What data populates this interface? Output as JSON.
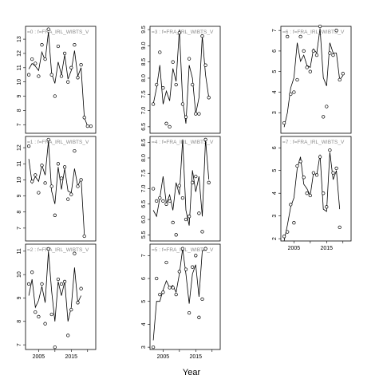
{
  "chart_data": {
    "type": "line",
    "xlabel": "Year",
    "x_ticks": [
      "2005",
      "2015"
    ],
    "panels": [
      {
        "strip": "=0 : f=FRA_IRL_WIBTS_V",
        "ylim": [
          6.4,
          13.9
        ],
        "yticks": [
          "7",
          "8",
          "9",
          "10",
          "11",
          "12",
          "13"
        ],
        "x": [
          2002,
          2003,
          2004,
          2005,
          2006,
          2007,
          2008,
          2009,
          2010,
          2011,
          2012,
          2013,
          2014,
          2015,
          2016,
          2017,
          2018,
          2019,
          2020,
          2021
        ],
        "line": [
          10.9,
          11.3,
          11.1,
          10.8,
          12.1,
          11.5,
          13.5,
          10.6,
          9.9,
          11.4,
          10.5,
          11.9,
          10.2,
          10.8,
          12.2,
          10.4,
          11.0,
          7.5,
          6.9,
          null
        ],
        "points": [
          10.5,
          11.6,
          11.3,
          10.4,
          12.6,
          11.6,
          13.7,
          10.5,
          9.0,
          12.5,
          10.4,
          12.0,
          10.0,
          11.0,
          12.6,
          10.3,
          11.2,
          7.5,
          6.9,
          6.9
        ]
      },
      {
        "strip": "=3 : f=FRA_IRL_WIBTS_V",
        "ylim": [
          6.3,
          9.6
        ],
        "yticks": [
          "6.5",
          "7.0",
          "7.5",
          "8.0",
          "8.5",
          "9.0",
          "9.5"
        ],
        "x": [
          2002,
          2003,
          2004,
          2005,
          2006,
          2007,
          2008,
          2009,
          2010,
          2011,
          2012,
          2013,
          2014,
          2015,
          2016,
          2017,
          2018,
          2019,
          2020,
          2021
        ],
        "line": [
          7.2,
          7.7,
          8.4,
          7.2,
          7.6,
          7.3,
          8.3,
          7.9,
          9.5,
          7.3,
          6.6,
          8.4,
          8.0,
          6.9,
          7.4,
          9.3,
          8.1,
          7.4,
          null,
          null
        ],
        "points": [
          7.2,
          7.8,
          8.8,
          7.7,
          6.6,
          6.5,
          8.5,
          7.8,
          9.4,
          7.2,
          6.8,
          8.6,
          7.8,
          6.9,
          6.9,
          9.3,
          8.4,
          7.4,
          null,
          null
        ]
      },
      {
        "strip": "=6 : f=FRA_IRL_WIBTS_V",
        "ylim": [
          2.0,
          7.2
        ],
        "yticks": [
          "3",
          "4",
          "5",
          "6",
          "7"
        ],
        "x": [
          2002,
          2003,
          2004,
          2005,
          2006,
          2007,
          2008,
          2009,
          2010,
          2011,
          2012,
          2013,
          2014,
          2015,
          2016,
          2017,
          2018,
          2019,
          2020,
          2021
        ],
        "line": [
          2.3,
          3.0,
          4.2,
          4.7,
          6.4,
          5.5,
          5.8,
          5.3,
          5.2,
          6.1,
          5.9,
          7.1,
          4.7,
          4.3,
          6.4,
          5.9,
          5.9,
          4.6,
          4.8,
          null
        ],
        "points": [
          2.5,
          6.7,
          3.9,
          4.0,
          4.6,
          6.7,
          6.0,
          5.2,
          5.0,
          6.0,
          5.8,
          7.2,
          2.8,
          3.3,
          5.9,
          5.8,
          7.0,
          4.6,
          4.9,
          null
        ]
      },
      {
        "strip": "=1 : f=FRA_IRL_WIBTS_V",
        "ylim": [
          6.2,
          12.7
        ],
        "yticks": [
          "7",
          "8",
          "9",
          "10",
          "11",
          "12"
        ],
        "x": [
          2002,
          2003,
          2004,
          2005,
          2006,
          2007,
          2008,
          2009,
          2010,
          2011,
          2012,
          2013,
          2014,
          2015,
          2016,
          2017,
          2018,
          2019,
          2020,
          2021
        ],
        "line": [
          11.3,
          9.8,
          10.2,
          9.9,
          10.9,
          10.3,
          12.4,
          9.3,
          8.5,
          10.8,
          9.4,
          10.7,
          9.3,
          9.2,
          10.7,
          9.6,
          10.1,
          6.6,
          null,
          null
        ],
        "points": [
          12.1,
          9.9,
          10.3,
          9.2,
          10.9,
          9.8,
          12.5,
          9.6,
          7.8,
          11.0,
          10.1,
          10.8,
          8.8,
          9.1,
          11.8,
          9.6,
          10.0,
          6.5,
          null,
          null
        ]
      },
      {
        "strip": "=4 : f=FRA_IRL_WIBTS_V",
        "ylim": [
          5.3,
          8.7
        ],
        "yticks": [
          "5.5",
          "6.0",
          "6.5",
          "7.0",
          "7.5",
          "8.0",
          "8.5"
        ],
        "x": [
          2002,
          2003,
          2004,
          2005,
          2006,
          2007,
          2008,
          2009,
          2010,
          2011,
          2012,
          2013,
          2014,
          2015,
          2016,
          2017,
          2018,
          2019,
          2020,
          2021
        ],
        "line": [
          6.3,
          6.1,
          6.7,
          7.4,
          6.5,
          6.8,
          6.3,
          7.2,
          6.8,
          8.6,
          6.3,
          5.8,
          7.6,
          6.9,
          7.4,
          6.1,
          8.6,
          7.3,
          null,
          null
        ],
        "points": [
          7.0,
          6.6,
          6.7,
          6.6,
          6.5,
          6.6,
          5.9,
          5.5,
          7.1,
          6.7,
          6.0,
          6.1,
          7.2,
          7.4,
          6.2,
          5.6,
          8.6,
          7.2,
          null,
          null
        ]
      },
      {
        "strip": "=7 : f=FRA_IRL_WIBTS_V",
        "ylim": [
          1.9,
          6.5
        ],
        "yticks": [
          "2",
          "3",
          "4",
          "5",
          "6"
        ],
        "x": [
          2002,
          2003,
          2004,
          2005,
          2006,
          2007,
          2008,
          2009,
          2010,
          2011,
          2012,
          2013,
          2014,
          2015,
          2016,
          2017,
          2018,
          2019,
          2020,
          2021
        ],
        "line": [
          1.9,
          2.6,
          3.4,
          3.8,
          5.1,
          5.6,
          4.4,
          4.2,
          3.9,
          4.9,
          4.8,
          5.7,
          3.3,
          3.2,
          5.8,
          4.6,
          5.0,
          3.3,
          null,
          null
        ],
        "points": [
          2.1,
          2.3,
          3.5,
          2.7,
          5.2,
          5.4,
          4.7,
          4.0,
          3.9,
          4.9,
          4.8,
          5.6,
          4.0,
          3.4,
          5.9,
          4.9,
          5.1,
          2.5,
          null,
          null
        ]
      },
      {
        "strip": "=2 : f=FRA_IRL_WIBTS_V",
        "ylim": [
          6.8,
          11.3
        ],
        "yticks": [
          "7",
          "8",
          "9",
          "10",
          "11"
        ],
        "x": [
          2002,
          2003,
          2004,
          2005,
          2006,
          2007,
          2008,
          2009,
          2010,
          2011,
          2012,
          2013,
          2014,
          2015,
          2016,
          2017,
          2018,
          2019,
          2020,
          2021
        ],
        "line": [
          9.1,
          9.8,
          8.6,
          8.9,
          9.5,
          8.8,
          11.0,
          9.3,
          8.0,
          9.7,
          9.1,
          9.7,
          8.0,
          8.6,
          10.3,
          8.8,
          9.1,
          null,
          null,
          null
        ],
        "points": [
          9.6,
          10.1,
          8.4,
          8.2,
          9.6,
          7.9,
          11.1,
          8.3,
          6.9,
          9.8,
          9.6,
          9.7,
          7.4,
          8.5,
          10.9,
          8.8,
          9.4,
          null,
          null,
          null
        ]
      },
      {
        "strip": "=5 : f=FRA_IRL_WIBTS_V",
        "ylim": [
          2.9,
          7.5
        ],
        "yticks": [
          "3",
          "4",
          "5",
          "6",
          "7"
        ],
        "x": [
          2002,
          2003,
          2004,
          2005,
          2006,
          2007,
          2008,
          2009,
          2010,
          2011,
          2012,
          2013,
          2014,
          2015,
          2016,
          2017,
          2018,
          2019,
          2020,
          2021
        ],
        "line": [
          3.3,
          5.0,
          5.0,
          5.5,
          5.9,
          5.6,
          5.7,
          5.4,
          6.2,
          7.3,
          6.2,
          4.9,
          6.2,
          6.6,
          5.2,
          7.2,
          7.3,
          null,
          null,
          null
        ],
        "points": [
          3.0,
          6.0,
          5.3,
          5.4,
          6.7,
          5.6,
          5.6,
          5.3,
          6.3,
          7.3,
          6.4,
          4.5,
          6.5,
          7.0,
          4.3,
          5.1,
          7.3,
          null,
          null,
          null
        ]
      }
    ]
  }
}
